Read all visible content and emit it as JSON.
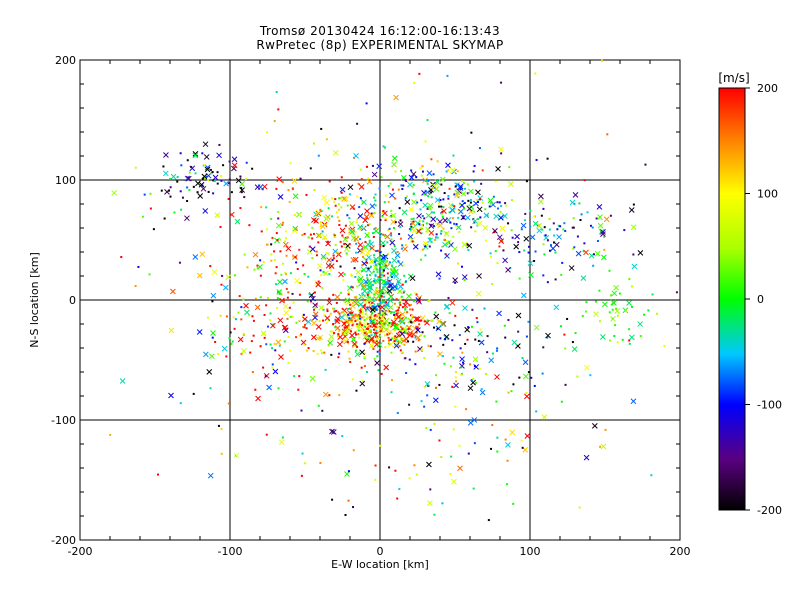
{
  "chart_data": {
    "type": "scatter",
    "title": "Tromsø 20130424 16:12:00-16:13:43",
    "subtitle": "RwPretec (8p) EXPERIMENTAL SKYMAP",
    "xlabel": "E-W location [km]",
    "ylabel": "N-S location [km]",
    "xlim": [
      -200,
      200
    ],
    "ylim": [
      -200,
      200
    ],
    "xticks": [
      "-200",
      "-100",
      "0",
      "100",
      "200"
    ],
    "yticks": [
      "-200",
      "-100",
      "0",
      "100",
      "200"
    ],
    "grid": true,
    "markers": [
      "dot",
      "x"
    ],
    "colorbar": {
      "label": "[m/s]",
      "min": -200,
      "max": 200,
      "ticks": [
        "-200",
        "-100",
        "0",
        "100",
        "200"
      ],
      "colormap": "black-purple-blue-cyan-green-yellow-orange-red"
    },
    "clusters": [
      {
        "cx": -5,
        "cy": -20,
        "sx": 22,
        "sy": 12,
        "n": 420,
        "vmean": 150,
        "vsd": 90
      },
      {
        "cx": 0,
        "cy": 15,
        "sx": 10,
        "sy": 18,
        "n": 200,
        "vmean": -20,
        "vsd": 40
      },
      {
        "cx": 35,
        "cy": 75,
        "sx": 28,
        "sy": 22,
        "n": 320,
        "vmean": -40,
        "vsd": 110
      },
      {
        "cx": -30,
        "cy": 55,
        "sx": 30,
        "sy": 30,
        "n": 260,
        "vmean": 130,
        "vsd": 110
      },
      {
        "cx": -115,
        "cy": 100,
        "sx": 18,
        "sy": 12,
        "n": 90,
        "vmean": -120,
        "vsd": 110
      },
      {
        "cx": 110,
        "cy": 50,
        "sx": 30,
        "sy": 18,
        "n": 110,
        "vmean": -90,
        "vsd": 90
      },
      {
        "cx": 160,
        "cy": -15,
        "sx": 15,
        "sy": 18,
        "n": 45,
        "vmean": 20,
        "vsd": 30
      },
      {
        "cx": -60,
        "cy": -15,
        "sx": 35,
        "sy": 30,
        "n": 160,
        "vmean": 120,
        "vsd": 120
      },
      {
        "cx": 60,
        "cy": -40,
        "sx": 30,
        "sy": 20,
        "n": 100,
        "vmean": -100,
        "vsd": 110
      },
      {
        "cx": 30,
        "cy": -110,
        "sx": 60,
        "sy": 40,
        "n": 90,
        "vmean": 20,
        "vsd": 150
      },
      {
        "cx": 0,
        "cy": 0,
        "sx": 100,
        "sy": 80,
        "n": 220,
        "vmean": 0,
        "vsd": 170
      }
    ]
  }
}
